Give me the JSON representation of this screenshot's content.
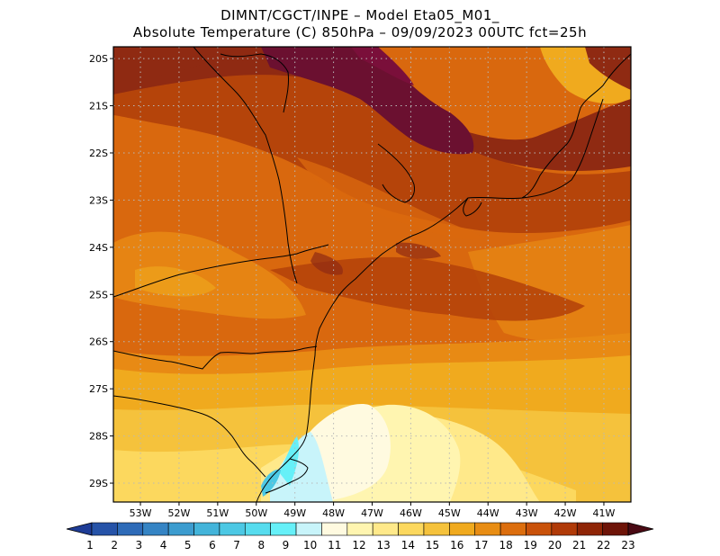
{
  "title": {
    "line1": "DIMNT/CGCT/INPE –  Model Eta05_M01_",
    "line2": "Absolute Temperature (C) 850hPa –  09/09/2023 00UTC fct=25h"
  },
  "map": {
    "lat_labels": [
      "20S",
      "21S",
      "22S",
      "23S",
      "24S",
      "25S",
      "26S",
      "27S",
      "28S",
      "29S"
    ],
    "lon_labels": [
      "53W",
      "52W",
      "51W",
      "50W",
      "49W",
      "48W",
      "47W",
      "46W",
      "45W",
      "44W",
      "43W",
      "42W",
      "41W"
    ],
    "extent": {
      "lon_min": -53.7,
      "lon_max": -40.3,
      "lat_min": -29.4,
      "lat_max": -19.75
    }
  },
  "colorbar": {
    "labels": [
      "1",
      "2",
      "3",
      "4",
      "5",
      "6",
      "7",
      "8",
      "9",
      "10",
      "11",
      "12",
      "13",
      "14",
      "15",
      "16",
      "17",
      "18",
      "19",
      "20",
      "21",
      "22",
      "23"
    ],
    "colors": [
      "#1e3c96",
      "#2653a8",
      "#2e6bb8",
      "#3584c4",
      "#3c9ccf",
      "#43b4da",
      "#4cc8e4",
      "#56dcee",
      "#66f0f8",
      "#c8f4fa",
      "#fffae0",
      "#fff5b0",
      "#ffe98a",
      "#fcd85e",
      "#f5c23c",
      "#f0aa1e",
      "#e88d14",
      "#dc6e0e",
      "#c9520a",
      "#b03a08",
      "#8f2506",
      "#6e1408",
      "#4a0a14"
    ]
  },
  "legend_colors": {
    "dark_maroon": "#6b1030",
    "brown": "#8f2a12",
    "rust": "#b5440a",
    "orange": "#d9680e",
    "orange_light": "#e88a14",
    "gold": "#f0aa1e",
    "yellow": "#f5c23c",
    "pale_yellow": "#ffe98a",
    "cream": "#fffae0",
    "cyan": "#4cc8e4"
  }
}
